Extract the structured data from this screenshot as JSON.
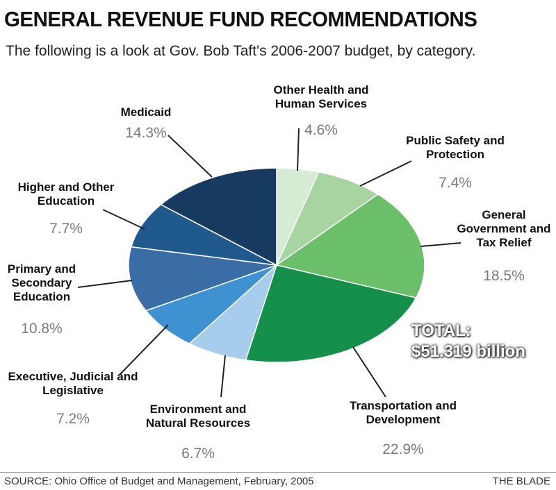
{
  "chart_data": {
    "type": "pie",
    "title": "GENERAL REVENUE FUND RECOMMENDATIONS",
    "subtitle": "The following is a look at Gov. Bob Taft's 2006-2007 budget, by category.",
    "categories": [
      "Other Health and Human Services",
      "Public Safety and Protection",
      "General Government and Tax Relief",
      "Transportation and Development",
      "Environment and Natural Resources",
      "Executive, Judicial and Legislative",
      "Primary and Secondary Education",
      "Higher and Other Education",
      "Medicaid"
    ],
    "values": [
      4.6,
      7.4,
      18.5,
      22.9,
      6.7,
      7.2,
      10.8,
      7.7,
      14.3
    ],
    "value_labels": [
      "4.6%",
      "7.4%",
      "18.5%",
      "22.9%",
      "6.7%",
      "7.2%",
      "10.8%",
      "7.7%",
      "14.3%"
    ],
    "colors": [
      "#d6ebd4",
      "#a8d4a2",
      "#6bbf69",
      "#14904a",
      "#a6cdec",
      "#3f92d2",
      "#3a6da5",
      "#1f598d",
      "#173a60"
    ],
    "total_label": "TOTAL:",
    "total_value": "$51.319 billion",
    "source": "SOURCE: Ohio Office of Budget and Management, February, 2005",
    "credit": "THE BLADE"
  }
}
